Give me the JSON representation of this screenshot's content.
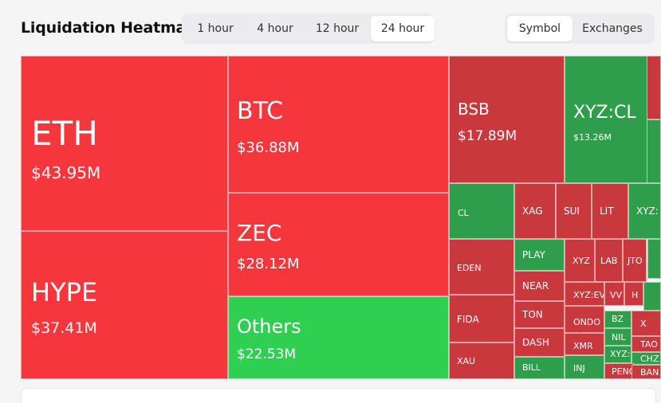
{
  "header": {
    "title": "Liquidation Heatmap",
    "timeframes": [
      "1 hour",
      "4 hour",
      "12 hour",
      "24 hour"
    ],
    "active_timeframe": "24 hour",
    "group_by": [
      "Symbol",
      "Exchanges"
    ],
    "active_group_by": "Symbol"
  },
  "colors": {
    "red": "#f5363d",
    "dark_red": "#c8383d",
    "green": "#2fcf52",
    "dark_green": "#2f9e4b"
  },
  "tiles": [
    {
      "symbol": "ETH",
      "value": "$43.95M",
      "color": "red"
    },
    {
      "symbol": "HYPE",
      "value": "$37.41M",
      "color": "red"
    },
    {
      "symbol": "BTC",
      "value": "$36.88M",
      "color": "red"
    },
    {
      "symbol": "ZEC",
      "value": "$28.12M",
      "color": "red"
    },
    {
      "symbol": "Others",
      "value": "$22.53M",
      "color": "green"
    },
    {
      "symbol": "BSB",
      "value": "$17.89M",
      "color": "dark_red"
    },
    {
      "symbol": "XYZ:CL",
      "value": "$13.26M",
      "color": "dark_green"
    },
    {
      "symbol": "CL",
      "color": "dark_green"
    },
    {
      "symbol": "XAG",
      "color": "dark_red"
    },
    {
      "symbol": "SUI",
      "color": "dark_red"
    },
    {
      "symbol": "LIT",
      "color": "dark_red"
    },
    {
      "symbol": "XYZ:",
      "color": "dark_green"
    },
    {
      "symbol": "EDEN",
      "color": "dark_red"
    },
    {
      "symbol": "PLAY",
      "color": "dark_green"
    },
    {
      "symbol": "XYZ",
      "color": "dark_red"
    },
    {
      "symbol": "LAB",
      "color": "dark_red"
    },
    {
      "symbol": "JTO",
      "color": "dark_red"
    },
    {
      "symbol": "NEAR",
      "color": "dark_red"
    },
    {
      "symbol": "XYZ:EV",
      "color": "dark_red"
    },
    {
      "symbol": "VV",
      "color": "dark_red"
    },
    {
      "symbol": "H",
      "color": "dark_red"
    },
    {
      "symbol": "FIDA",
      "color": "dark_red"
    },
    {
      "symbol": "TON",
      "color": "dark_red"
    },
    {
      "symbol": "ONDO",
      "color": "dark_red"
    },
    {
      "symbol": "BZ",
      "color": "dark_green"
    },
    {
      "symbol": "X",
      "color": "dark_red"
    },
    {
      "symbol": "DASH",
      "color": "dark_red"
    },
    {
      "symbol": "NIL",
      "color": "dark_green"
    },
    {
      "symbol": "TAO",
      "color": "dark_red"
    },
    {
      "symbol": "XMR",
      "color": "dark_red"
    },
    {
      "symbol": "XYZ:",
      "color": "dark_green"
    },
    {
      "symbol": "CHZ",
      "color": "dark_green"
    },
    {
      "symbol": "XAU",
      "color": "dark_red"
    },
    {
      "symbol": "BILL",
      "color": "dark_green"
    },
    {
      "symbol": "INJ",
      "color": "dark_green"
    },
    {
      "symbol": "PENG",
      "color": "dark_red"
    },
    {
      "symbol": "BAN",
      "color": "dark_red"
    },
    {
      "symbol": "",
      "color": "dark_green"
    },
    {
      "symbol": "",
      "color": "dark_green"
    },
    {
      "symbol": "",
      "color": "dark_red"
    },
    {
      "symbol": "",
      "color": "dark_green"
    }
  ]
}
